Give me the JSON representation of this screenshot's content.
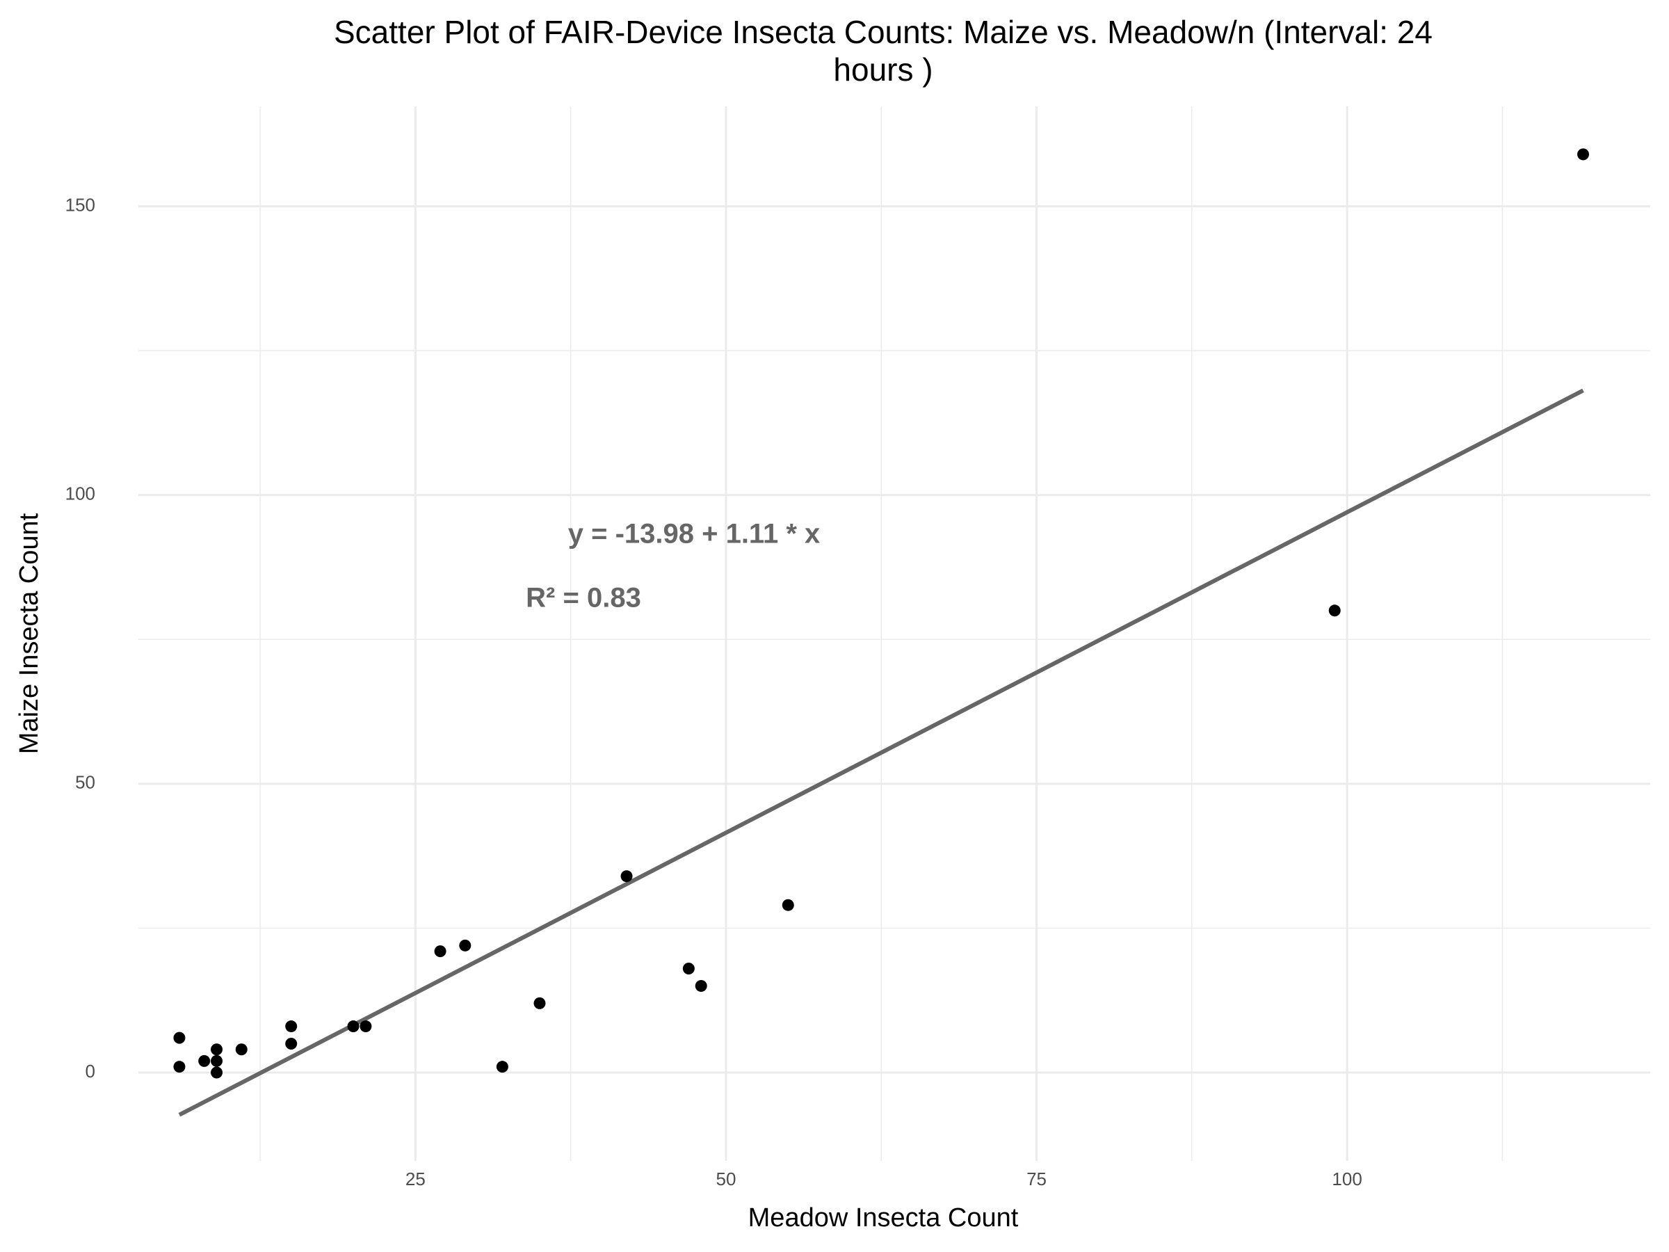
{
  "chart_data": {
    "type": "scatter",
    "title": "Scatter Plot of FAIR-Device Insecta Counts: Maize vs. Meadow/n (Interval: 24",
    "title_line2": "hours )",
    "x_label": "Meadow Insecta Count",
    "y_label": "Maize Insecta Count",
    "annotations": [
      "y = -13.98 + 1.11 * x",
      "R² = 0.83"
    ],
    "fit": {
      "intercept": -13.98,
      "slope": 1.11,
      "color": "#666666"
    },
    "series": [
      {
        "name": "Insecta counts",
        "color": "#000000",
        "x": [
          6,
          6,
          8,
          9,
          9,
          9,
          11,
          15,
          15,
          20,
          21,
          27,
          29,
          32,
          35,
          42,
          47,
          48,
          55,
          99,
          119
        ],
        "values": [
          6,
          1,
          2,
          2,
          4,
          0,
          4,
          8,
          5,
          8,
          8,
          21,
          22,
          1,
          12,
          34,
          18,
          15,
          29,
          80,
          159
        ]
      }
    ],
    "xlim": [
      2.7,
      124.4
    ],
    "xticks": [
      25,
      50,
      75,
      100
    ],
    "ylim": [
      -15.3,
      167.3
    ],
    "yticks": [
      0,
      50,
      100,
      150
    ],
    "grid": true
  }
}
